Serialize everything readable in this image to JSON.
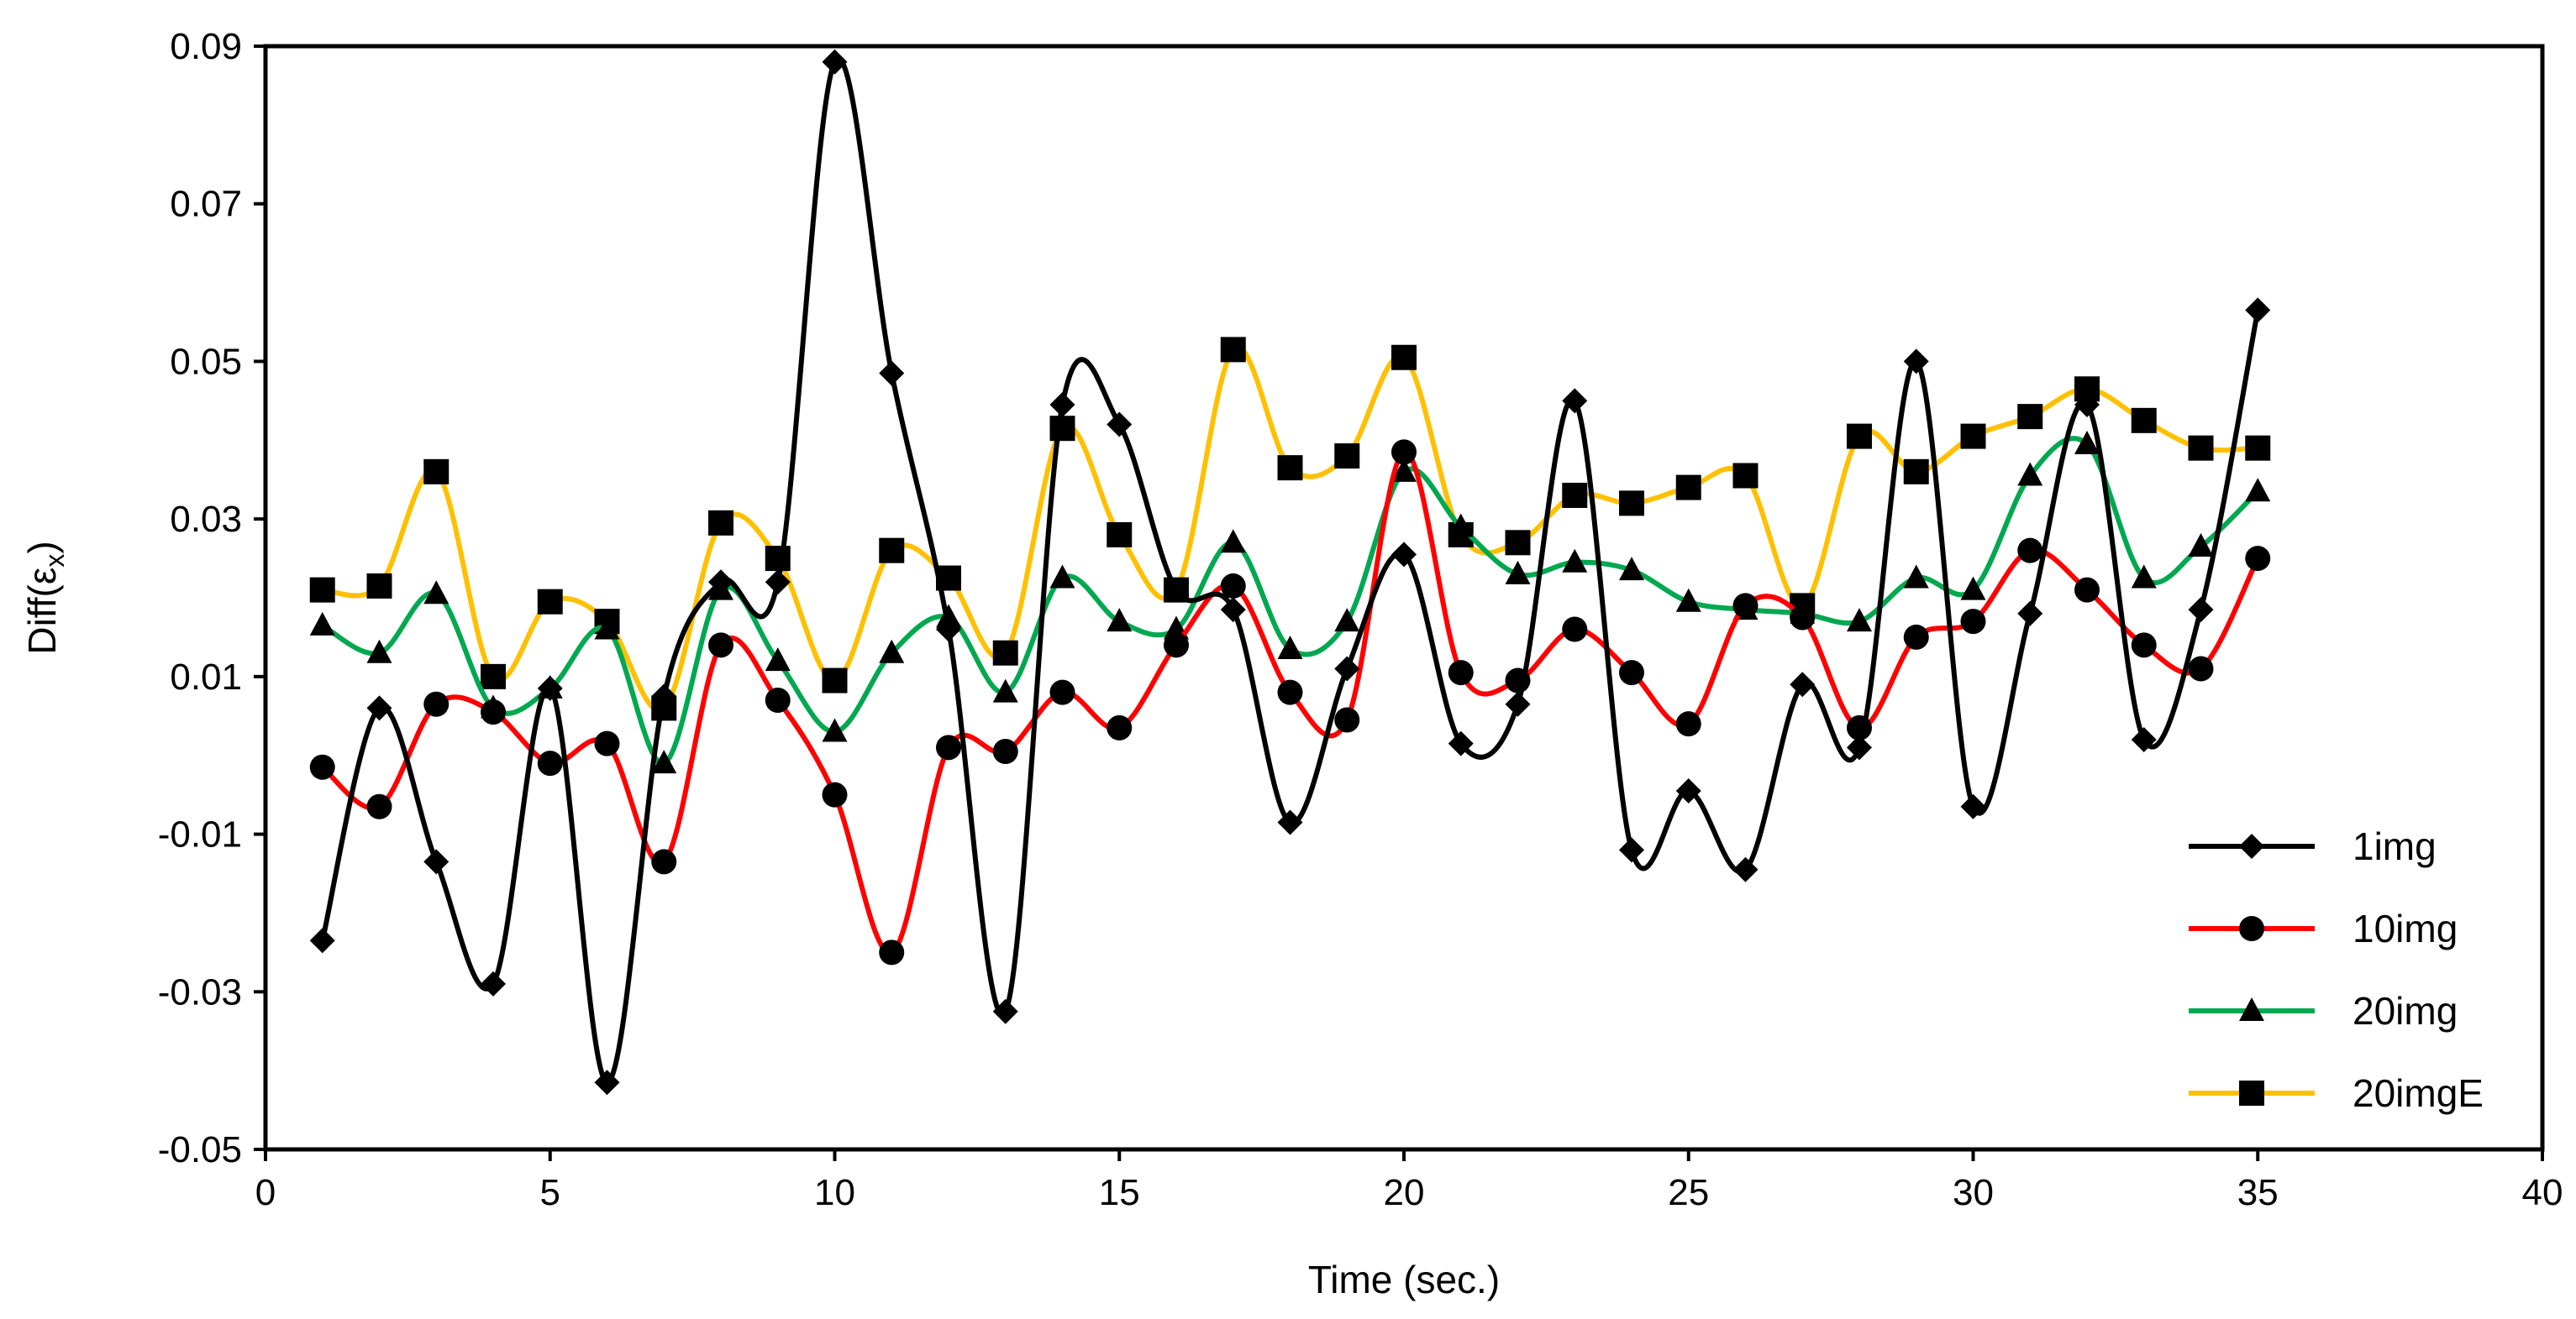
{
  "chart_data": {
    "type": "line",
    "title": "",
    "xlabel": "Time (sec.)",
    "ylabel": "Diff(ε",
    "ylabel_subscript": "x",
    "ylabel_suffix": ")",
    "xlim": [
      0,
      40
    ],
    "ylim": [
      -0.05,
      0.09
    ],
    "xticks": [
      0,
      5,
      10,
      15,
      20,
      25,
      30,
      35,
      40
    ],
    "xtick_labels": [
      "0",
      "5",
      "10",
      "15",
      "20",
      "25",
      "30",
      "35",
      "40"
    ],
    "yticks": [
      -0.05,
      -0.03,
      -0.01,
      0.01,
      0.03,
      0.05,
      0.07,
      0.09
    ],
    "ytick_labels": [
      "-0.05",
      "-0.03",
      "-0.01",
      "0.01",
      "0.03",
      "0.05",
      "0.07",
      "0.09"
    ],
    "grid": false,
    "legend_position": "bottom-right",
    "x": [
      1,
      2,
      3,
      4,
      5,
      6,
      7,
      8,
      9,
      10,
      11,
      12,
      13,
      14,
      15,
      16,
      17,
      18,
      19,
      20,
      21,
      22,
      23,
      24,
      25,
      26,
      27,
      28,
      29,
      30,
      31,
      32,
      33,
      34,
      35
    ],
    "series": [
      {
        "name": "1img",
        "color": "#000000",
        "marker": "diamond",
        "values": [
          -0.0235,
          0.006,
          -0.0135,
          -0.029,
          0.0085,
          -0.0415,
          0.0075,
          0.022,
          0.022,
          0.088,
          0.0485,
          0.016,
          -0.0325,
          0.0445,
          0.042,
          0.021,
          0.0185,
          -0.0085,
          0.011,
          0.0255,
          0.0015,
          0.0065,
          0.045,
          -0.012,
          -0.0045,
          -0.0145,
          0.009,
          0.001,
          0.05,
          -0.0065,
          0.018,
          0.0445,
          0.002,
          0.0185,
          0.0565
        ]
      },
      {
        "name": "10img",
        "color": "#ff0000",
        "marker": "circle",
        "values": [
          -0.0015,
          -0.0065,
          0.0065,
          0.0055,
          -0.001,
          0.0015,
          -0.0135,
          0.014,
          0.007,
          -0.005,
          -0.025,
          0.001,
          0.0005,
          0.008,
          0.0035,
          0.014,
          0.0215,
          0.008,
          0.0045,
          0.0385,
          0.0105,
          0.0095,
          0.016,
          0.0105,
          0.004,
          0.019,
          0.0175,
          0.0035,
          0.015,
          0.017,
          0.026,
          0.021,
          0.014,
          0.011,
          0.025
        ]
      },
      {
        "name": "20img",
        "color": "#00a850",
        "marker": "triangle",
        "values": [
          0.0165,
          0.013,
          0.0205,
          0.006,
          0.0085,
          0.016,
          -0.001,
          0.021,
          0.012,
          0.003,
          0.013,
          0.0175,
          0.008,
          0.0225,
          0.017,
          0.016,
          0.027,
          0.0135,
          0.017,
          0.036,
          0.029,
          0.023,
          0.0245,
          0.0235,
          0.0195,
          0.0185,
          0.018,
          0.017,
          0.0225,
          0.021,
          0.0355,
          0.0395,
          0.0225,
          0.0265,
          0.0335
        ]
      },
      {
        "name": "20imgE",
        "color": "#ffc000",
        "marker": "square",
        "values": [
          0.021,
          0.0215,
          0.036,
          0.01,
          0.0195,
          0.017,
          0.006,
          0.0295,
          0.025,
          0.0095,
          0.026,
          0.0225,
          0.013,
          0.0415,
          0.028,
          0.021,
          0.0515,
          0.0365,
          0.038,
          0.0505,
          0.028,
          0.027,
          0.033,
          0.032,
          0.034,
          0.0355,
          0.019,
          0.0405,
          0.036,
          0.0405,
          0.043,
          0.0465,
          0.0425,
          0.039,
          0.039
        ]
      }
    ]
  }
}
